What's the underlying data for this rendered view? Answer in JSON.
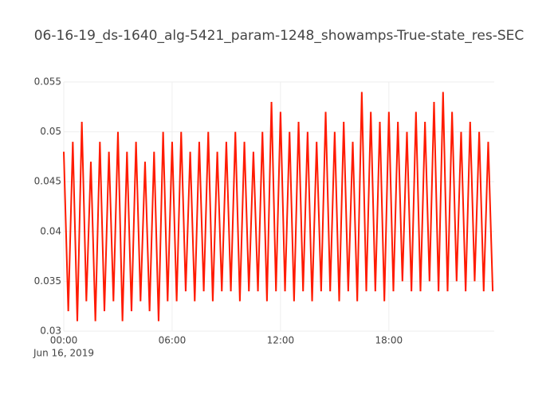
{
  "chart_data": {
    "type": "line",
    "title": "06-16-19_ds-1640_alg-5421_param-1248_showamps-True-state_res-SEC",
    "x": [
      "2019-06-16 00:00",
      "2019-06-16 00:15",
      "2019-06-16 00:30",
      "2019-06-16 00:45",
      "2019-06-16 01:00",
      "2019-06-16 01:15",
      "2019-06-16 01:30",
      "2019-06-16 01:45",
      "2019-06-16 02:00",
      "2019-06-16 02:15",
      "2019-06-16 02:30",
      "2019-06-16 02:45",
      "2019-06-16 03:00",
      "2019-06-16 03:15",
      "2019-06-16 03:30",
      "2019-06-16 03:45",
      "2019-06-16 04:00",
      "2019-06-16 04:15",
      "2019-06-16 04:30",
      "2019-06-16 04:45",
      "2019-06-16 05:00",
      "2019-06-16 05:15",
      "2019-06-16 05:30",
      "2019-06-16 05:45",
      "2019-06-16 06:00",
      "2019-06-16 06:15",
      "2019-06-16 06:30",
      "2019-06-16 06:45",
      "2019-06-16 07:00",
      "2019-06-16 07:15",
      "2019-06-16 07:30",
      "2019-06-16 07:45",
      "2019-06-16 08:00",
      "2019-06-16 08:15",
      "2019-06-16 08:30",
      "2019-06-16 08:45",
      "2019-06-16 09:00",
      "2019-06-16 09:15",
      "2019-06-16 09:30",
      "2019-06-16 09:45",
      "2019-06-16 10:00",
      "2019-06-16 10:15",
      "2019-06-16 10:30",
      "2019-06-16 10:45",
      "2019-06-16 11:00",
      "2019-06-16 11:15",
      "2019-06-16 11:30",
      "2019-06-16 11:45",
      "2019-06-16 12:00",
      "2019-06-16 12:15",
      "2019-06-16 12:30",
      "2019-06-16 12:45",
      "2019-06-16 13:00",
      "2019-06-16 13:15",
      "2019-06-16 13:30",
      "2019-06-16 13:45",
      "2019-06-16 14:00",
      "2019-06-16 14:15",
      "2019-06-16 14:30",
      "2019-06-16 14:45",
      "2019-06-16 15:00",
      "2019-06-16 15:15",
      "2019-06-16 15:30",
      "2019-06-16 15:45",
      "2019-06-16 16:00",
      "2019-06-16 16:15",
      "2019-06-16 16:30",
      "2019-06-16 16:45",
      "2019-06-16 17:00",
      "2019-06-16 17:15",
      "2019-06-16 17:30",
      "2019-06-16 17:45",
      "2019-06-16 18:00",
      "2019-06-16 18:15",
      "2019-06-16 18:30",
      "2019-06-16 18:45",
      "2019-06-16 19:00",
      "2019-06-16 19:15",
      "2019-06-16 19:30",
      "2019-06-16 19:45",
      "2019-06-16 20:00",
      "2019-06-16 20:15",
      "2019-06-16 20:30",
      "2019-06-16 20:45",
      "2019-06-16 21:00",
      "2019-06-16 21:15",
      "2019-06-16 21:30",
      "2019-06-16 21:45",
      "2019-06-16 22:00",
      "2019-06-16 22:15",
      "2019-06-16 22:30",
      "2019-06-16 22:45",
      "2019-06-16 23:00",
      "2019-06-16 23:15",
      "2019-06-16 23:30",
      "2019-06-16 23:45"
    ],
    "series": [
      {
        "color": "#ff1a00",
        "values": [
          0.048,
          0.032,
          0.049,
          0.031,
          0.051,
          0.033,
          0.047,
          0.031,
          0.049,
          0.032,
          0.048,
          0.033,
          0.05,
          0.031,
          0.048,
          0.032,
          0.049,
          0.033,
          0.047,
          0.032,
          0.048,
          0.031,
          0.05,
          0.033,
          0.049,
          0.033,
          0.05,
          0.034,
          0.048,
          0.033,
          0.049,
          0.034,
          0.05,
          0.033,
          0.048,
          0.034,
          0.049,
          0.034,
          0.05,
          0.033,
          0.049,
          0.034,
          0.048,
          0.034,
          0.05,
          0.033,
          0.053,
          0.034,
          0.052,
          0.034,
          0.05,
          0.033,
          0.051,
          0.034,
          0.05,
          0.033,
          0.049,
          0.034,
          0.052,
          0.034,
          0.05,
          0.033,
          0.051,
          0.034,
          0.049,
          0.033,
          0.054,
          0.034,
          0.052,
          0.034,
          0.051,
          0.033,
          0.052,
          0.034,
          0.051,
          0.035,
          0.05,
          0.034,
          0.052,
          0.034,
          0.051,
          0.035,
          0.053,
          0.034,
          0.054,
          0.034,
          0.052,
          0.035,
          0.05,
          0.034,
          0.051,
          0.035,
          0.05,
          0.034,
          0.049,
          0.034
        ]
      }
    ],
    "xlim": [
      "2019-06-16 00:00",
      "2019-06-16 23:50"
    ],
    "xticks": [
      {
        "value": "2019-06-16 00:00",
        "label": "00:00"
      },
      {
        "value": "2019-06-16 06:00",
        "label": "06:00"
      },
      {
        "value": "2019-06-16 12:00",
        "label": "12:00"
      },
      {
        "value": "2019-06-16 18:00",
        "label": "18:00"
      }
    ],
    "x_date_label": "Jun 16, 2019",
    "ylim": [
      0.03,
      0.055
    ],
    "yticks": [
      0.03,
      0.035,
      0.04,
      0.045,
      0.05,
      0.055
    ],
    "grid": true
  }
}
